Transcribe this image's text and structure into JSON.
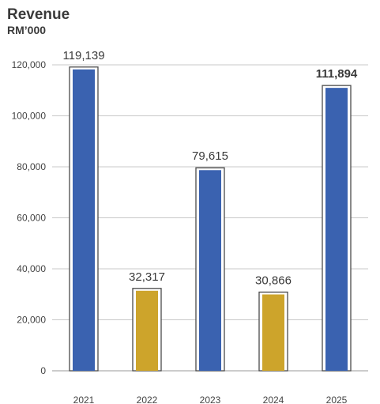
{
  "chart_data": {
    "type": "bar",
    "title": "Revenue",
    "subtitle": "RM’000",
    "categories": [
      "2021",
      "2022",
      "2023",
      "2024",
      "2025"
    ],
    "values": [
      119139,
      32317,
      79615,
      30866,
      111894
    ],
    "data_labels": [
      "119,139",
      "32,317",
      "79,615",
      "30,866",
      "111,894"
    ],
    "highlight_label_index": 4,
    "ylim": [
      0,
      120000
    ],
    "yticks": [
      0,
      20000,
      40000,
      60000,
      80000,
      100000,
      120000
    ],
    "ytick_labels": [
      "0",
      "20,000",
      "40,000",
      "60,000",
      "80,000",
      "100,000",
      "120,000"
    ],
    "grid": true,
    "colors": [
      "#3a62b0",
      "#cda42b",
      "#3a62b0",
      "#cda42b",
      "#3a62b0"
    ],
    "xlabel": "",
    "ylabel": ""
  }
}
